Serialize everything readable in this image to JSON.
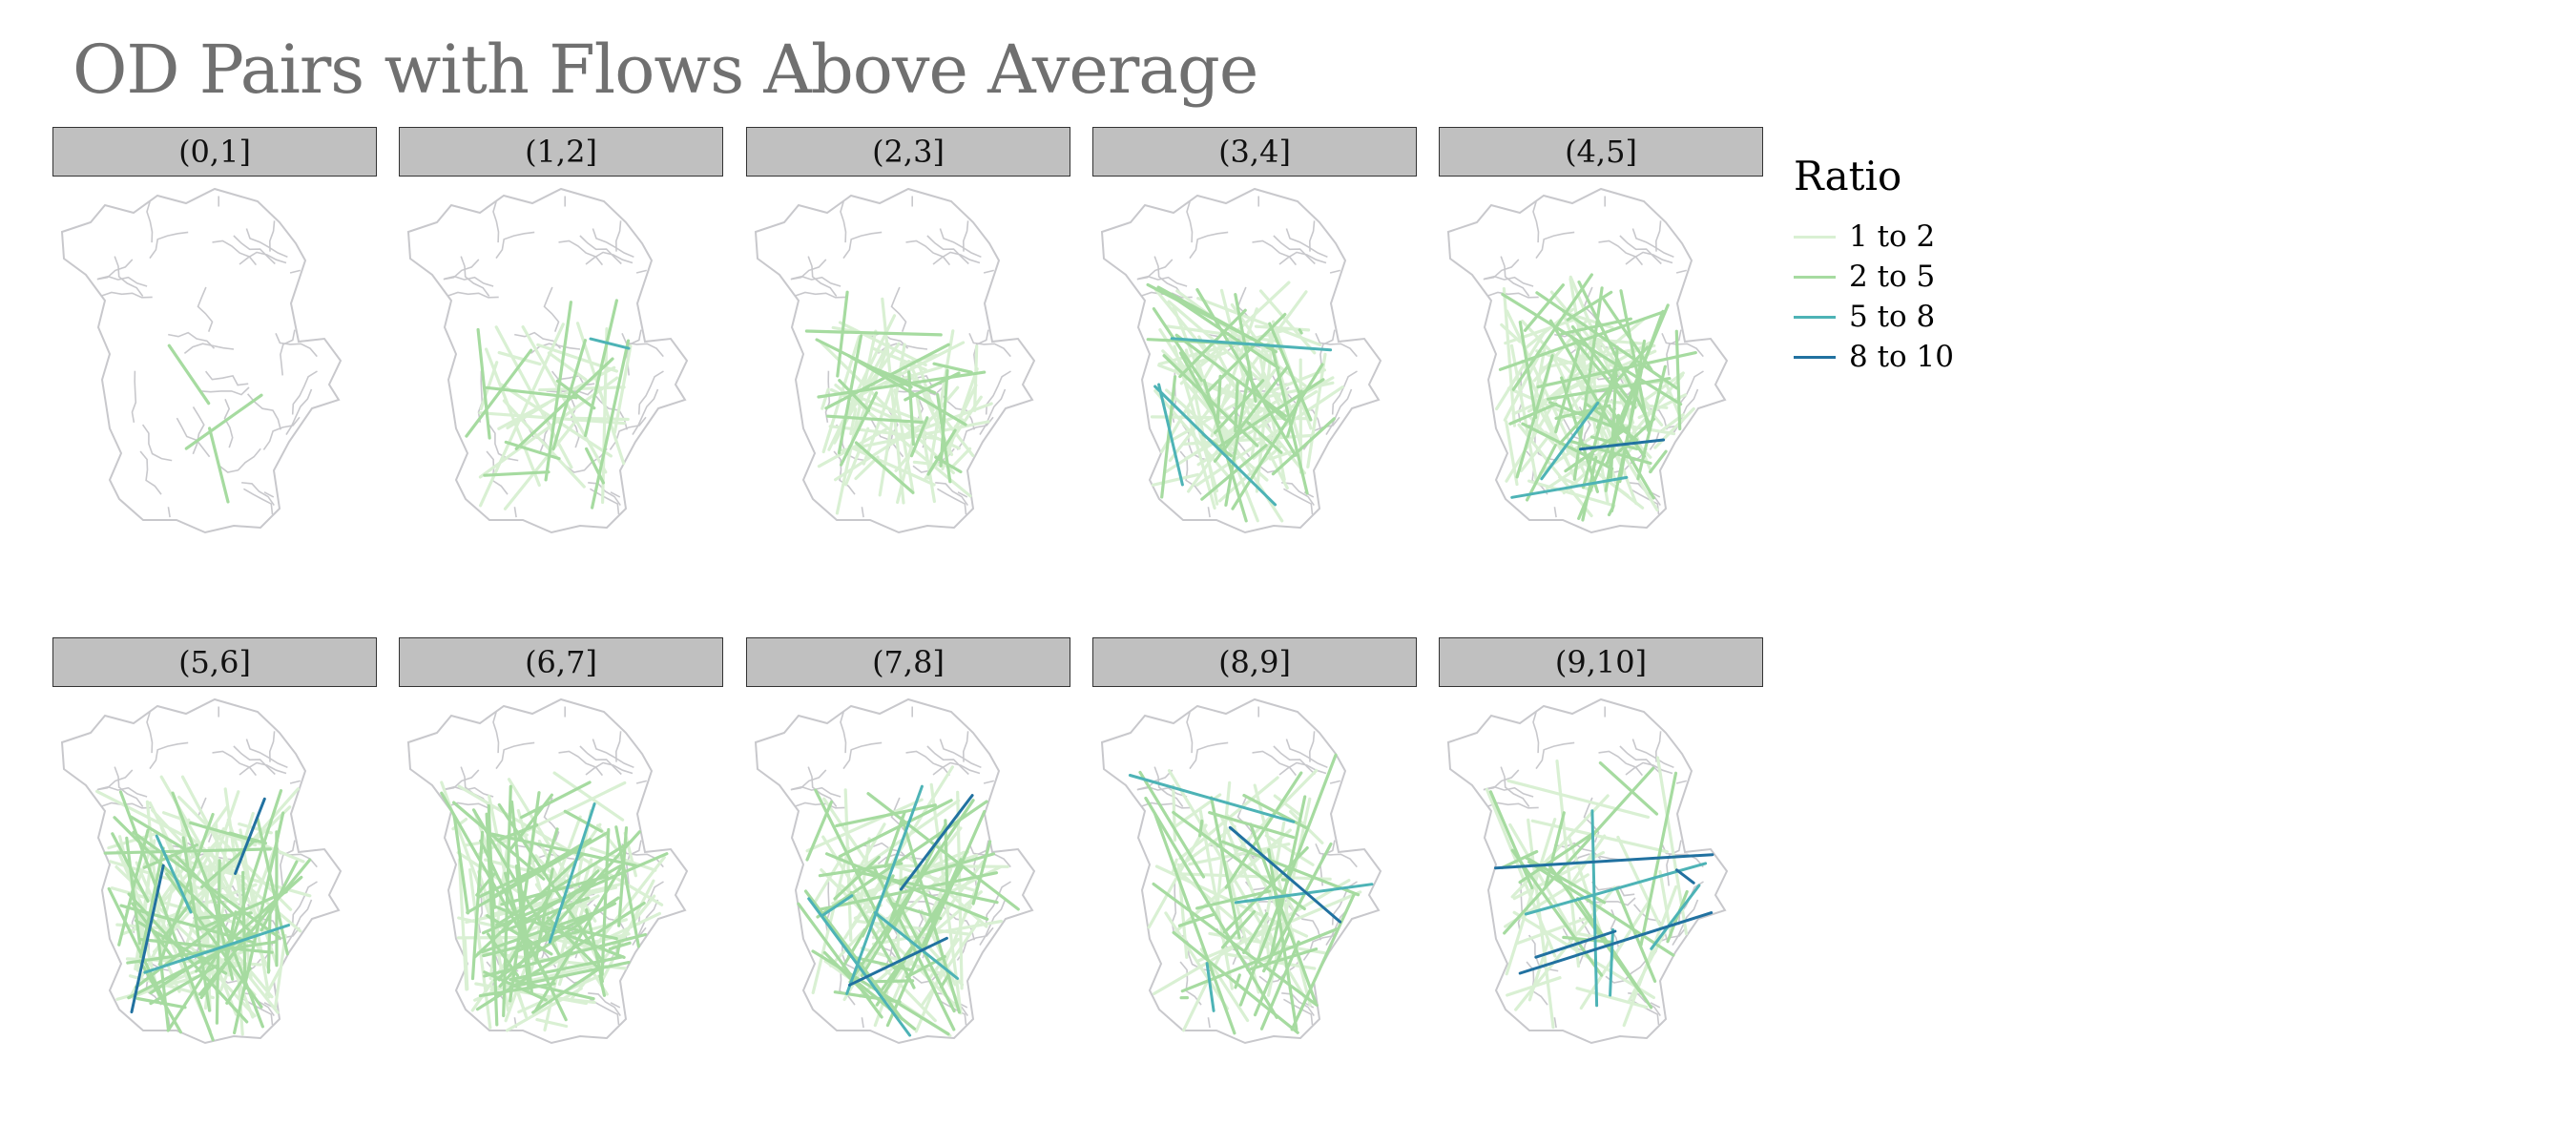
{
  "chart_data": {
    "type": "flow-map-small-multiples",
    "title": "OD Pairs with Flows Above Average",
    "facet_labels": [
      "(0,1]",
      "(1,2]",
      "(2,3]",
      "(3,4]",
      "(4,5]",
      "(5,6]",
      "(6,7]",
      "(7,8]",
      "(8,9]",
      "(9,10]"
    ],
    "legend": {
      "title": "Ratio",
      "placement": "right",
      "items": [
        {
          "label": "1 to 2",
          "color": "#d9f0d3"
        },
        {
          "label": "2 to 5",
          "color": "#a6dba0"
        },
        {
          "label": "5 to 8",
          "color": "#4db3b6"
        },
        {
          "label": "8 to 10",
          "color": "#2171a0"
        }
      ]
    },
    "facet_flow_mix": [
      {
        "facet": "(0,1]",
        "counts": [
          0,
          3,
          0,
          0
        ]
      },
      {
        "facet": "(1,2]",
        "counts": [
          20,
          12,
          1,
          0
        ]
      },
      {
        "facet": "(2,3]",
        "counts": [
          45,
          20,
          0,
          0
        ]
      },
      {
        "facet": "(3,4]",
        "counts": [
          55,
          30,
          3,
          0
        ]
      },
      {
        "facet": "(4,5]",
        "counts": [
          55,
          45,
          2,
          1
        ]
      },
      {
        "facet": "(5,6]",
        "counts": [
          60,
          50,
          2,
          2
        ]
      },
      {
        "facet": "(6,7]",
        "counts": [
          50,
          60,
          1,
          0
        ]
      },
      {
        "facet": "(7,8]",
        "counts": [
          45,
          40,
          4,
          2
        ]
      },
      {
        "facet": "(8,9]",
        "counts": [
          35,
          30,
          3,
          1
        ]
      },
      {
        "facet": "(9,10]",
        "counts": [
          25,
          15,
          4,
          4
        ]
      }
    ],
    "base_layer_color": "#c8c8cc"
  }
}
